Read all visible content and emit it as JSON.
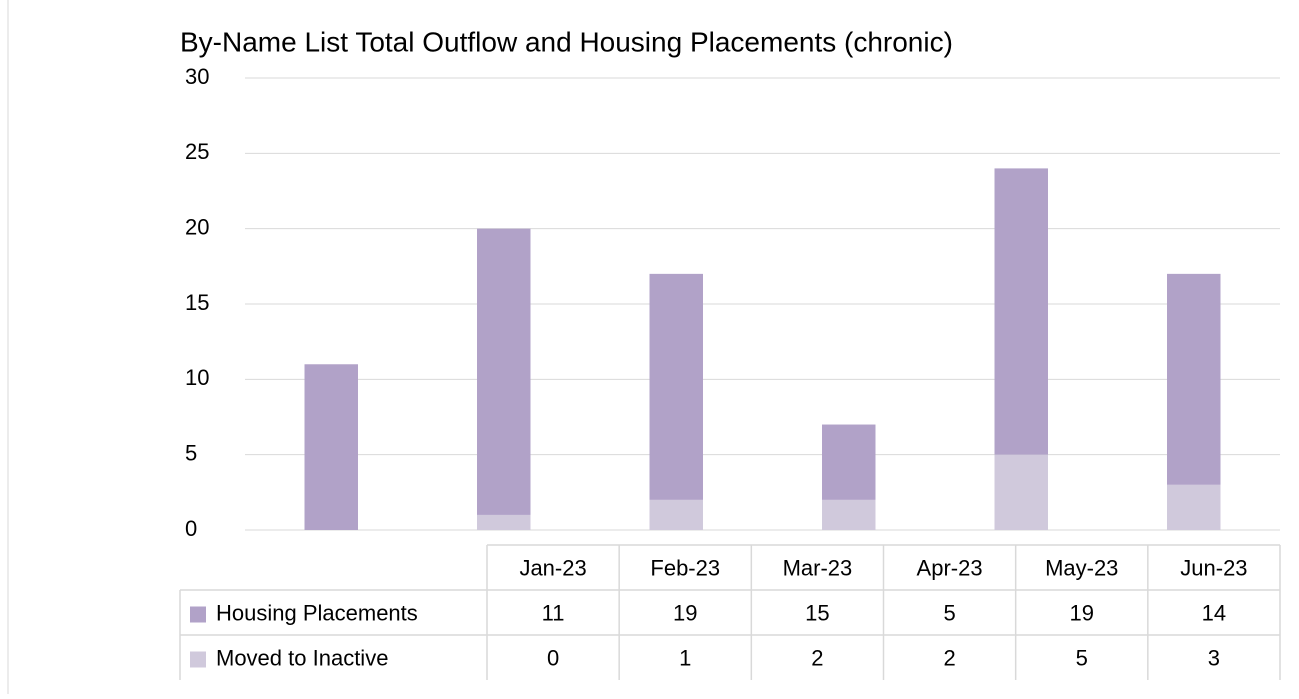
{
  "chart_data": {
    "type": "bar",
    "stacked": true,
    "title": "By-Name List Total Outflow and Housing Placements (chronic)",
    "categories": [
      "Jan-23",
      "Feb-23",
      "Mar-23",
      "Apr-23",
      "May-23",
      "Jun-23"
    ],
    "series": [
      {
        "name": "Housing Placements",
        "color": "#b1a2c8",
        "values": [
          11,
          19,
          15,
          5,
          19,
          14
        ]
      },
      {
        "name": "Moved to Inactive",
        "color": "#d0c9dc",
        "values": [
          0,
          1,
          2,
          2,
          5,
          3
        ]
      }
    ],
    "ylim": [
      0,
      30
    ],
    "yticks": [
      0,
      5,
      10,
      15,
      20,
      25,
      30
    ],
    "grid": true
  }
}
